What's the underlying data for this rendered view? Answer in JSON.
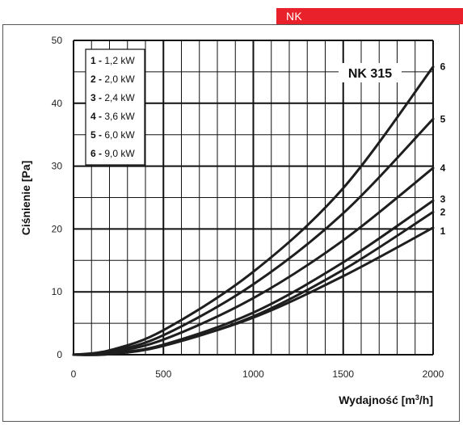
{
  "header": {
    "tag_label": "NK"
  },
  "colors": {
    "tag_background": "#e8212b",
    "grid": "#111111",
    "curves": "#1e1e1e"
  },
  "chart_data": {
    "type": "line",
    "model_label": "NK 315",
    "xlabel_main": "Wydajność [m",
    "xlabel_sup": "3",
    "xlabel_end": "/h]",
    "ylabel": "Ciśnienie [Pa]",
    "xlim": [
      0,
      2000
    ],
    "ylim": [
      0,
      50
    ],
    "x_ticks": [
      0,
      500,
      1000,
      1500,
      2000
    ],
    "y_ticks": [
      0,
      10,
      20,
      30,
      40,
      50
    ],
    "x_minor_grid": [
      100,
      200,
      300,
      400,
      600,
      700,
      800,
      900,
      1100,
      1200,
      1300,
      1400,
      1600,
      1700,
      1800,
      1900
    ],
    "y_minor_grid": [
      5,
      15,
      25,
      35,
      45
    ],
    "grid": true,
    "legend_position": "top-left",
    "legend": [
      {
        "key": "1",
        "sep": " - ",
        "value": "1,2 kW"
      },
      {
        "key": "2",
        "sep": " - ",
        "value": "2,0 kW"
      },
      {
        "key": "3",
        "sep": " - ",
        "value": "2,4 kW"
      },
      {
        "key": "4",
        "sep": " - ",
        "value": "3,6 kW"
      },
      {
        "key": "5",
        "sep": " - ",
        "value": "6,0 kW"
      },
      {
        "key": "6",
        "sep": " - ",
        "value": "9,0 kW"
      }
    ],
    "series": [
      {
        "name": "1",
        "x": [
          0,
          200,
          500,
          1000,
          1500,
          2000
        ],
        "y": [
          0,
          0.2,
          1.5,
          5.9,
          12.5,
          20.2
        ]
      },
      {
        "name": "2",
        "x": [
          0,
          200,
          500,
          1000,
          1500,
          2000
        ],
        "y": [
          0,
          0.1,
          1.4,
          6.1,
          13.5,
          22.7
        ]
      },
      {
        "name": "3",
        "x": [
          0,
          200,
          500,
          1000,
          1500,
          2000
        ],
        "y": [
          0,
          0.1,
          1.6,
          6.7,
          14.7,
          24.5
        ]
      },
      {
        "name": "4",
        "x": [
          0,
          200,
          500,
          1000,
          1500,
          2000
        ],
        "y": [
          0,
          0.4,
          2.4,
          9.0,
          18.2,
          29.7
        ]
      },
      {
        "name": "5",
        "x": [
          0,
          200,
          500,
          1000,
          1500,
          2000
        ],
        "y": [
          0,
          0.5,
          3.1,
          11.2,
          22.5,
          37.5
        ]
      },
      {
        "name": "6",
        "x": [
          0,
          200,
          500,
          1000,
          1500,
          2000
        ],
        "y": [
          0,
          0.7,
          3.9,
          13.2,
          26.5,
          45.8
        ]
      }
    ]
  }
}
